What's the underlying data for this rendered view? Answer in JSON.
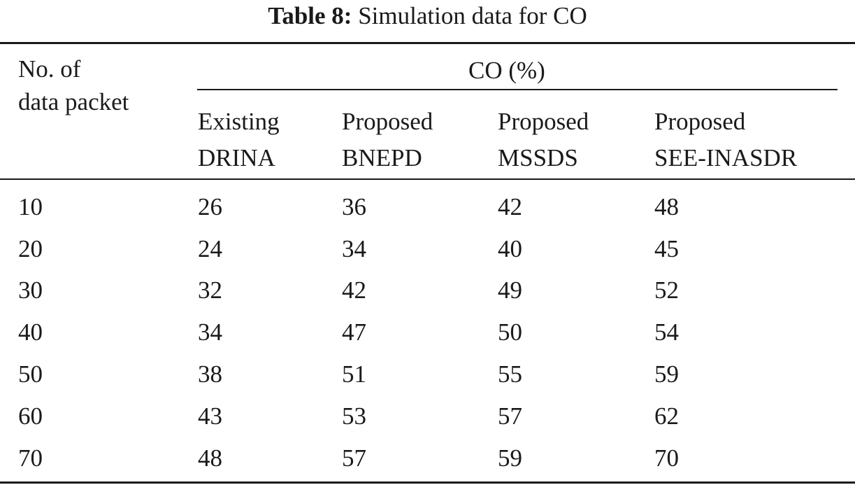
{
  "table": {
    "caption_label": "Table 8:",
    "caption_text": "Simulation data for CO",
    "header": {
      "row_label_line1": "No. of",
      "row_label_line2": "data packet",
      "group_label": "CO (%)",
      "columns": [
        {
          "line1": "Existing",
          "line2": "DRINA"
        },
        {
          "line1": "Proposed",
          "line2": "BNEPD"
        },
        {
          "line1": "Proposed",
          "line2": "MSSDS"
        },
        {
          "line1": "Proposed",
          "line2": "SEE-INASDR"
        }
      ]
    },
    "rows": [
      [
        "10",
        "26",
        "36",
        "42",
        "48"
      ],
      [
        "20",
        "24",
        "34",
        "40",
        "45"
      ],
      [
        "30",
        "32",
        "42",
        "49",
        "52"
      ],
      [
        "40",
        "34",
        "47",
        "50",
        "54"
      ],
      [
        "50",
        "38",
        "51",
        "55",
        "59"
      ],
      [
        "60",
        "43",
        "53",
        "57",
        "62"
      ],
      [
        "70",
        "48",
        "57",
        "59",
        "70"
      ]
    ]
  }
}
